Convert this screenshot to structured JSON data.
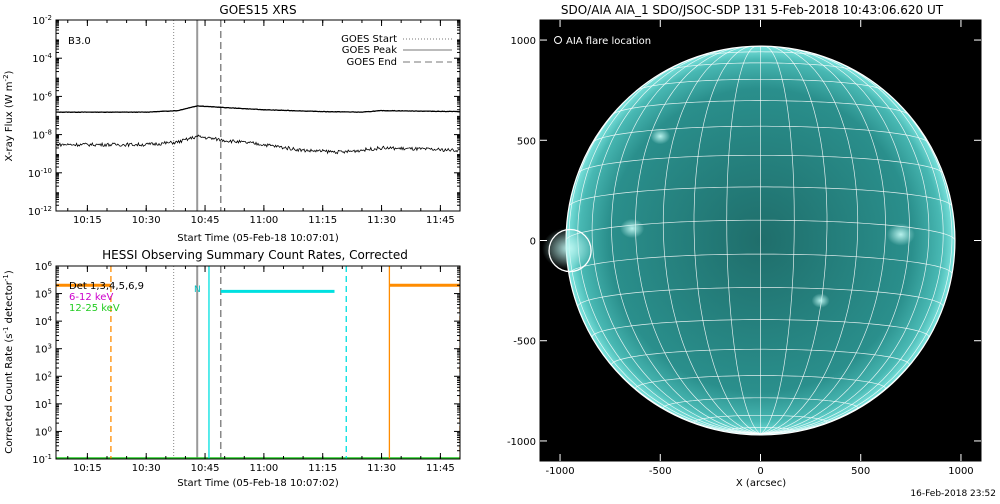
{
  "chart_data": [
    {
      "id": "goes",
      "type": "line",
      "title": "GOES15 XRS",
      "xlabel": "Start Time (05-Feb-18 10:07:01)",
      "ylabel": "X-ray Flux (W m^-2)",
      "y_scale": "log",
      "ylim": [
        1e-12,
        0.01
      ],
      "xlim": [
        "10:07",
        "11:50"
      ],
      "x_ticks": [
        "10:15",
        "10:30",
        "10:45",
        "11:00",
        "11:15",
        "11:30",
        "11:45"
      ],
      "y_ticks": [
        "10^-12",
        "10^-10",
        "10^-8",
        "10^-6",
        "10^-4",
        "10^-2"
      ],
      "annotation": "B3.0",
      "legend": {
        "placement": "top-right",
        "entries": [
          {
            "label": "GOES Start",
            "style": "dotted"
          },
          {
            "label": "GOES Peak",
            "style": "solid"
          },
          {
            "label": "GOES End",
            "style": "dashed"
          }
        ]
      },
      "markers": {
        "start": "10:37",
        "peak": "10:43",
        "end": "10:49"
      },
      "series": [
        {
          "channel": "long",
          "x": [
            "10:07",
            "10:30",
            "10:38",
            "10:43",
            "10:50",
            "11:00",
            "11:15",
            "11:25",
            "11:30",
            "11:50"
          ],
          "values": [
            1.5e-07,
            1.5e-07,
            1.8e-07,
            3.2e-07,
            2.6e-07,
            2e-07,
            1.6e-07,
            1.5e-07,
            1.8e-07,
            1.6e-07
          ]
        },
        {
          "channel": "short",
          "x": [
            "10:07",
            "10:30",
            "10:38",
            "10:43",
            "10:50",
            "11:00",
            "11:10",
            "11:20",
            "11:30",
            "11:50"
          ],
          "values": [
            3e-09,
            3e-09,
            4e-09,
            8e-09,
            5e-09,
            3e-09,
            1.5e-09,
            1.2e-09,
            2e-09,
            1.5e-09
          ]
        }
      ]
    },
    {
      "id": "hessi",
      "type": "line",
      "title": "HESSI Observing Summary Count Rates, Corrected",
      "xlabel": "Start Time (05-Feb-18 10:07:02)",
      "ylabel": "Corrected Count Rate (s^-1 detector^-1)",
      "y_scale": "log",
      "ylim": [
        0.1,
        1000000.0
      ],
      "xlim": [
        "10:07",
        "11:50"
      ],
      "x_ticks": [
        "10:15",
        "10:30",
        "10:45",
        "11:00",
        "11:15",
        "11:30",
        "11:45"
      ],
      "y_ticks": [
        "10^-1",
        "10^0",
        "10^1",
        "10^2",
        "10^3",
        "10^4",
        "10^5",
        "10^6"
      ],
      "legend": {
        "placement": "top-left",
        "entries": [
          {
            "label": "Det 1,3,4,5,6,9",
            "color": "#000000"
          },
          {
            "label": "6-12 keV",
            "color": "#cc00cc"
          },
          {
            "label": "12-25 keV",
            "color": "#22cc22"
          }
        ]
      },
      "annotation": "N",
      "markers": {
        "start": "10:37",
        "peak": "10:43",
        "end": "10:49"
      },
      "series": [
        {
          "name": "orange-1",
          "color": "#ff8c00",
          "x": [
            "10:07",
            "10:21"
          ],
          "values": [
            200000.0,
            200000.0
          ]
        },
        {
          "name": "orange-2",
          "color": "#ff8c00",
          "x": [
            "11:32",
            "11:50"
          ],
          "values": [
            200000.0,
            200000.0
          ]
        },
        {
          "name": "cyan-1",
          "color": "#00e0e0",
          "x": [
            "10:49",
            "11:18"
          ],
          "values": [
            120000.0,
            120000.0
          ]
        }
      ],
      "vlines": [
        {
          "x": "10:21",
          "color": "#ff8c00",
          "style": "dashed"
        },
        {
          "x": "10:46",
          "color": "#00e0e0",
          "style": "solid"
        },
        {
          "x": "11:21",
          "color": "#00e0e0",
          "style": "dashed"
        },
        {
          "x": "11:32",
          "color": "#ff8c00",
          "style": "solid"
        },
        {
          "x": "11:50",
          "color": "#ff8c00",
          "style": "dashed"
        }
      ]
    },
    {
      "id": "aia",
      "type": "image",
      "title": "SDO/AIA AIA_1 SDO/JSOC-SDP 131  5-Feb-2018 10:43:06.620 UT",
      "xlabel": "X (arcsec)",
      "xlim": [
        -1100,
        1100
      ],
      "ylim": [
        -1100,
        1100
      ],
      "x_ticks": [
        "-1000",
        "-500",
        "0",
        "500",
        "1000"
      ],
      "y_ticks": [
        "-1000",
        "-500",
        "0",
        "500",
        "1000"
      ],
      "legend": {
        "placement": "top-left",
        "entries": [
          {
            "label": "AIA flare location",
            "symbol": "circle"
          }
        ]
      },
      "flare_location": {
        "x": -950,
        "y": -50
      },
      "disk_color": "#2a8f8c",
      "limb_color": "#9ff5f0"
    }
  ],
  "footer": {
    "timestamp": "16-Feb-2018 23:52"
  }
}
